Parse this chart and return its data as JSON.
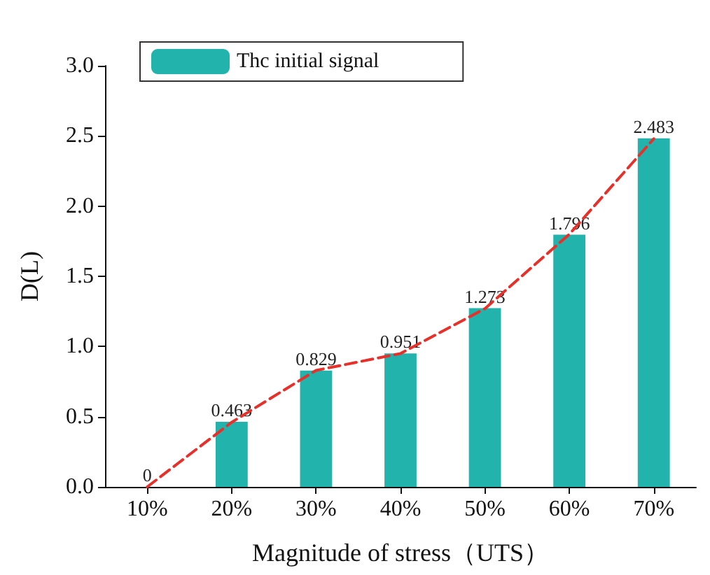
{
  "chart_data": {
    "type": "bar",
    "xlabel": "Magnitude of stress（UTS）",
    "ylabel": "D(L)",
    "categories": [
      "10%",
      "20%",
      "30%",
      "40%",
      "50%",
      "60%",
      "70%"
    ],
    "series": [
      {
        "name": "Thc initial signal",
        "color": "#22b3ad",
        "values": [
          0,
          0.463,
          0.829,
          0.951,
          1.273,
          1.796,
          2.483
        ],
        "data_labels": true
      },
      {
        "type": "line",
        "color": "#e8302a",
        "line_style": "dashed",
        "marker": "none",
        "values": [
          0,
          0.46,
          0.83,
          0.95,
          1.27,
          1.8,
          2.48
        ]
      }
    ],
    "ylim": [
      0,
      3
    ],
    "yticks": [
      {
        "value": 0,
        "label": "0.0"
      },
      0.5,
      {
        "value": 1,
        "label": "1.0"
      },
      1.5,
      {
        "value": 2,
        "label": "2.0"
      },
      2.5,
      {
        "value": 3,
        "label": "3.0"
      }
    ],
    "grid": false,
    "legend": "top left"
  }
}
